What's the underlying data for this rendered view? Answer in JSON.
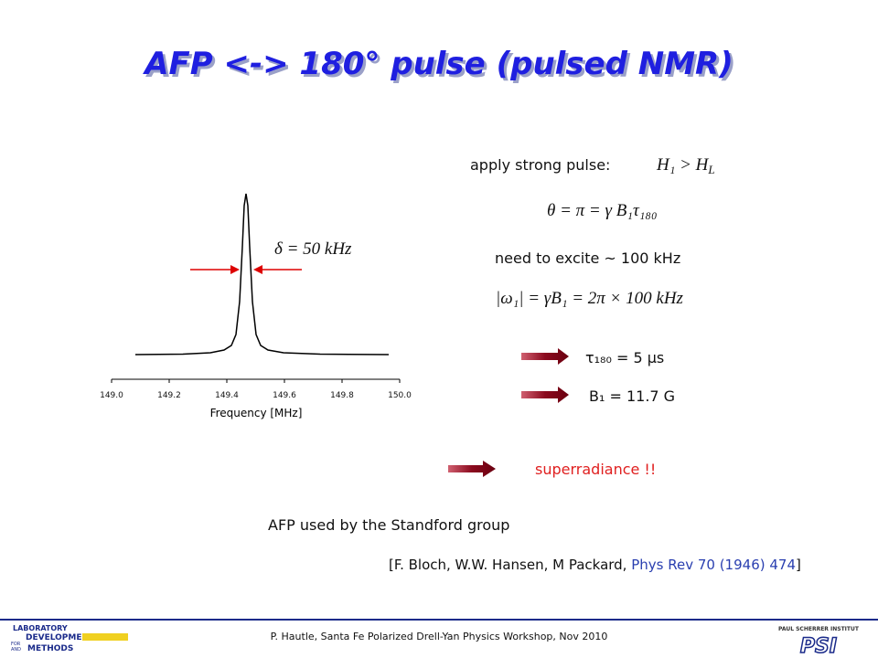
{
  "title": "AFP <-> 180° pulse (pulsed NMR)",
  "spectrum": {
    "annotation": "δ = 50 kHz",
    "xlabel": "Frequency [MHz]",
    "xlim": [
      149.0,
      150.0
    ],
    "xticks": [
      {
        "value": 149.0,
        "label": "149.0"
      },
      {
        "value": 149.2,
        "label": "149.2"
      },
      {
        "value": 149.4,
        "label": "149.4"
      },
      {
        "value": 149.6,
        "label": "149.6"
      },
      {
        "value": 149.8,
        "label": "149.8"
      },
      {
        "value": 150.0,
        "label": "150.0"
      }
    ]
  },
  "text": {
    "pulse_label": "apply strong pulse:",
    "pulse_condition": "H₁ > H",
    "pulse_condition_sub": "L",
    "angle_eq": "θ = π = γ B₁τ₁₈₀",
    "excite": "need to excite ~ 100 kHz",
    "omega_eq": "|ω₁| = γB₁ = 2π × 100 kHz",
    "tau_result": "τ₁₈₀ = 5 μs",
    "b1_result": "B₁ = 11.7 G",
    "superradiance": "superradiance !!",
    "afp_used": "AFP used by the Standford group",
    "citation_start": "[F. Bloch,  W.W. Hansen, M Packard, ",
    "citation_journal": "Phys Rev 70 (1946) 474",
    "citation_end": "]"
  },
  "footer": {
    "credit": "P. Hautle, Santa Fe Polarized Drell-Yan Physics Workshop, Nov 2010",
    "ldm_logo": [
      "LABORATORY",
      "DEVELOPMENTS",
      "FOR",
      "AND",
      "METHODS"
    ],
    "psi_caption": "PAUL SCHERRER INSTITUT",
    "psi_logo": "PSI"
  }
}
